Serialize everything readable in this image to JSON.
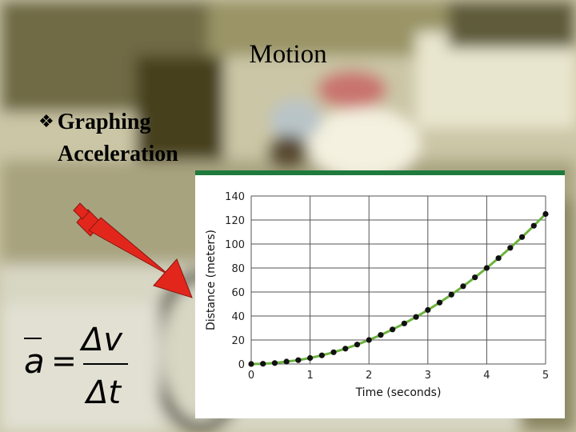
{
  "slide": {
    "title": "Motion",
    "bullet_line1": "Graphing",
    "bullet_line2": "Acceleration",
    "bullet_icon": "diamond-bullet-icon"
  },
  "formula": {
    "lhs": "a",
    "numerator": "Δv",
    "denominator": "Δt"
  },
  "colors": {
    "curve": "#6cb33e",
    "points": "#111111",
    "arrow": "#e3261c",
    "chart_border": "#1f7a3d"
  },
  "chart_data": {
    "type": "line",
    "xlabel": "Time (seconds)",
    "ylabel": "Distance (meters)",
    "xlim": [
      0,
      5
    ],
    "ylim": [
      0,
      140
    ],
    "xticks": [
      0,
      1,
      2,
      3,
      4,
      5
    ],
    "yticks": [
      0,
      20,
      40,
      60,
      80,
      100,
      120,
      140
    ],
    "grid": true,
    "series": [
      {
        "x": [
          0,
          0.2,
          0.4,
          0.6,
          0.8,
          1.0,
          1.2,
          1.4,
          1.6,
          1.8,
          2.0,
          2.2,
          2.4,
          2.6,
          2.8,
          3.0,
          3.2,
          3.4,
          3.6,
          3.8,
          4.0,
          4.2,
          4.4,
          4.6,
          4.8,
          5.0
        ],
        "y": [
          0,
          0.2,
          0.8,
          2,
          3.2,
          5,
          7.2,
          9.8,
          12.8,
          16.2,
          20,
          24.2,
          28.8,
          33.8,
          39.2,
          45,
          51.2,
          57.8,
          64.8,
          72.2,
          80,
          88.2,
          96.8,
          105.8,
          115.2,
          125
        ]
      }
    ]
  }
}
